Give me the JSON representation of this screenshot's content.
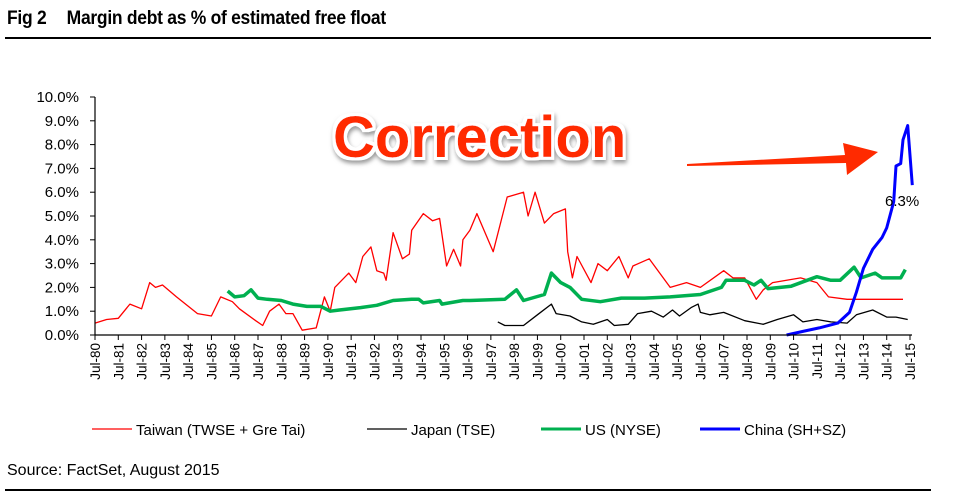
{
  "header": {
    "fig_number": "Fig 2",
    "title": "Margin debt as % of estimated free float"
  },
  "annotation": {
    "text": "Correction",
    "color": "#ff2a00",
    "end_label": "6.3%"
  },
  "source": "Source: FactSet, August 2015",
  "chart_data": {
    "type": "line",
    "title": "Margin debt as % of estimated free float",
    "xlabel": "",
    "ylabel": "",
    "ylim": [
      0,
      10
    ],
    "xlim": [
      1980.5,
      2015.5
    ],
    "yticks": [
      "0.0%",
      "1.0%",
      "2.0%",
      "3.0%",
      "4.0%",
      "5.0%",
      "6.0%",
      "7.0%",
      "8.0%",
      "9.0%",
      "10.0%"
    ],
    "xticks": [
      "Jul-80",
      "Jul-81",
      "Jul-82",
      "Jul-83",
      "Jul-84",
      "Jul-85",
      "Jul-86",
      "Jul-87",
      "Jul-88",
      "Jul-89",
      "Jul-90",
      "Jul-91",
      "Jul-92",
      "Jul-93",
      "Jul-94",
      "Jul-95",
      "Jul-96",
      "Jul-97",
      "Jul-98",
      "Jul-99",
      "Jul-00",
      "Jul-01",
      "Jul-02",
      "Jul-03",
      "Jul-04",
      "Jul-05",
      "Jul-06",
      "Jul-07",
      "Jul-08",
      "Jul-09",
      "Jul-10",
      "Jul-11",
      "Jul-12",
      "Jul-13",
      "Jul-14",
      "Jul-15"
    ],
    "legend_position": "bottom",
    "series": [
      {
        "name": "Taiwan (TWSE + Gre Tai)",
        "color": "#ff0000",
        "x": [
          1980.5,
          1981,
          1981.5,
          1982,
          1982.5,
          1982.85,
          1983.1,
          1983.4,
          1984,
          1984.9,
          1985.5,
          1985.9,
          1986.4,
          1986.7,
          1987.4,
          1987.7,
          1988,
          1988.4,
          1988.7,
          1989,
          1989.4,
          1990,
          1990.35,
          1990.6,
          1990.8,
          1991.4,
          1991.7,
          1992,
          1992.35,
          1992.6,
          1992.9,
          1993,
          1993.3,
          1993.7,
          1994,
          1994.1,
          1994.6,
          1995,
          1995.3,
          1995.6,
          1995.9,
          1996.2,
          1996.3,
          1996.6,
          1996.9,
          1997.6,
          1998.2,
          1998.9,
          1999.1,
          1999.4,
          1999.8,
          2000.2,
          2000.7,
          2000.8,
          2001,
          2001.2,
          2001.8,
          2002.1,
          2002.5,
          2003,
          2003.4,
          2003.6,
          2004.3,
          2005.2,
          2005.9,
          2006.5,
          2007.5,
          2007.9,
          2008.4,
          2008.9,
          2009.2,
          2009.6,
          2010.8,
          2011.5,
          2012,
          2012.8,
          2013.8,
          2015.2
        ],
        "y": [
          0.5,
          0.65,
          0.7,
          1.3,
          1.1,
          2.2,
          2.0,
          2.1,
          1.6,
          0.9,
          0.8,
          1.6,
          1.4,
          1.1,
          0.6,
          0.4,
          1.0,
          1.3,
          0.9,
          0.9,
          0.2,
          0.3,
          1.6,
          1.0,
          2.0,
          2.6,
          2.2,
          3.3,
          3.7,
          2.7,
          2.6,
          2.3,
          4.3,
          3.2,
          3.4,
          4.4,
          5.1,
          4.8,
          4.9,
          2.9,
          3.6,
          2.9,
          4.0,
          4.4,
          5.1,
          3.5,
          5.8,
          6.0,
          5.0,
          6.0,
          4.7,
          5.1,
          5.3,
          3.5,
          2.4,
          3.3,
          2.2,
          3.0,
          2.7,
          3.3,
          2.4,
          2.9,
          3.2,
          2.0,
          2.2,
          2.0,
          2.7,
          2.4,
          2.4,
          1.5,
          1.9,
          2.2,
          2.4,
          2.2,
          1.6,
          1.5,
          1.5,
          1.5
        ]
      },
      {
        "name": "Japan (TSE)",
        "color": "#000000",
        "x": [
          1997.8,
          1998.1,
          1998.9,
          1999.5,
          2000.1,
          2000.3,
          2000.9,
          2001.4,
          2001.9,
          2002.5,
          2002.8,
          2003.4,
          2003.8,
          2004.4,
          2004.9,
          2005.3,
          2005.6,
          2006.1,
          2006.4,
          2006.5,
          2006.9,
          2007.5,
          2008.4,
          2009.2,
          2009.8,
          2010.5,
          2010.9,
          2011.5,
          2012.1,
          2012.8,
          2013.2,
          2013.9,
          2014.5,
          2014.9,
          2015.4
        ],
        "y": [
          0.55,
          0.4,
          0.4,
          0.85,
          1.3,
          0.9,
          0.8,
          0.55,
          0.45,
          0.65,
          0.4,
          0.45,
          0.9,
          1.0,
          0.75,
          1.05,
          0.8,
          1.15,
          1.3,
          0.95,
          0.85,
          0.95,
          0.6,
          0.45,
          0.65,
          0.85,
          0.55,
          0.65,
          0.55,
          0.5,
          0.85,
          1.05,
          0.75,
          0.75,
          0.65
        ]
      },
      {
        "name": "US (NYSE)",
        "color": "#00b050",
        "x": [
          1986.2,
          1986.5,
          1986.9,
          1987.2,
          1987.5,
          1987.9,
          1988.5,
          1989,
          1989.6,
          1990.2,
          1990.6,
          1991,
          1991.9,
          1992.6,
          1993.3,
          1994.1,
          1994.4,
          1994.6,
          1995.3,
          1995.4,
          1996.3,
          1996.6,
          1998.1,
          1998.6,
          1998.9,
          1999.8,
          2000.1,
          2000.5,
          2000.9,
          2001.4,
          2002.2,
          2003.1,
          2004.1,
          2005.2,
          2006.5,
          2007.4,
          2007.6,
          2008.4,
          2008.8,
          2009.1,
          2009.4,
          2010.4,
          2011.5,
          2012.1,
          2012.5,
          2013.1,
          2013.4,
          2014,
          2014.3,
          2015.1,
          2015.3
        ],
        "y": [
          1.85,
          1.6,
          1.65,
          1.9,
          1.55,
          1.5,
          1.45,
          1.3,
          1.2,
          1.2,
          1.0,
          1.05,
          1.15,
          1.25,
          1.45,
          1.5,
          1.5,
          1.35,
          1.45,
          1.3,
          1.45,
          1.45,
          1.5,
          1.9,
          1.45,
          1.7,
          2.6,
          2.2,
          2.0,
          1.5,
          1.4,
          1.55,
          1.55,
          1.6,
          1.7,
          2.0,
          2.3,
          2.3,
          2.1,
          2.3,
          1.95,
          2.05,
          2.45,
          2.3,
          2.3,
          2.85,
          2.4,
          2.6,
          2.4,
          2.4,
          2.75
        ]
      },
      {
        "name": "China (SH+SZ)",
        "color": "#0000ff",
        "x": [
          2010.2,
          2010.9,
          2011.6,
          2012.4,
          2012.9,
          2013.2,
          2013.5,
          2013.9,
          2014.3,
          2014.5,
          2014.8,
          2014.9,
          2015.1,
          2015.2,
          2015.4,
          2015.6
        ],
        "y": [
          0,
          0.15,
          0.3,
          0.5,
          0.95,
          1.8,
          2.8,
          3.6,
          4.1,
          4.5,
          5.6,
          7.1,
          7.2,
          8.2,
          8.8,
          6.3
        ]
      }
    ]
  }
}
